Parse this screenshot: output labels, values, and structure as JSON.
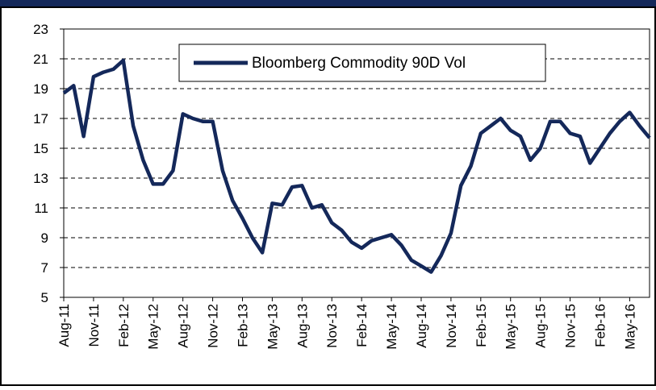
{
  "chart_data": {
    "type": "line",
    "categories": [
      "Aug-11",
      null,
      null,
      "Nov-11",
      null,
      null,
      "Feb-12",
      null,
      null,
      "May-12",
      null,
      null,
      "Aug-12",
      null,
      null,
      "Nov-12",
      null,
      null,
      "Feb-13",
      null,
      null,
      "May-13",
      null,
      null,
      "Aug-13",
      null,
      null,
      "Nov-13",
      null,
      null,
      "Feb-14",
      null,
      null,
      "May-14",
      null,
      null,
      "Aug-14",
      null,
      null,
      "Nov-14",
      null,
      null,
      "Feb-15",
      null,
      null,
      "May-15",
      null,
      null,
      "Aug-15",
      null,
      null,
      "Nov-15",
      null,
      null,
      "Feb-16",
      null,
      null,
      "May-16",
      null,
      null
    ],
    "series": [
      {
        "name": "Bloomberg Commodity 90D Vol",
        "color": "#14285a",
        "values": [
          18.7,
          19.2,
          15.8,
          19.8,
          20.1,
          20.3,
          20.9,
          16.5,
          14.2,
          12.6,
          12.6,
          13.5,
          17.3,
          17.0,
          16.8,
          16.8,
          13.5,
          11.5,
          10.3,
          9.0,
          8.0,
          11.3,
          11.2,
          12.4,
          12.5,
          11.0,
          11.2,
          10.0,
          9.5,
          8.7,
          8.3,
          8.8,
          9.0,
          9.2,
          8.5,
          7.5,
          7.1,
          6.7,
          7.8,
          9.3,
          12.5,
          13.8,
          16.0,
          16.5,
          17.0,
          16.2,
          15.8,
          14.2,
          15.0,
          16.8,
          16.8,
          16.0,
          15.8,
          14.0,
          15.0,
          16.0,
          16.8,
          17.4,
          16.5,
          15.7
        ]
      }
    ],
    "ylim": [
      5,
      23
    ],
    "yticks": [
      5,
      7,
      9,
      11,
      13,
      15,
      17,
      19,
      21,
      23
    ],
    "grid": true
  }
}
